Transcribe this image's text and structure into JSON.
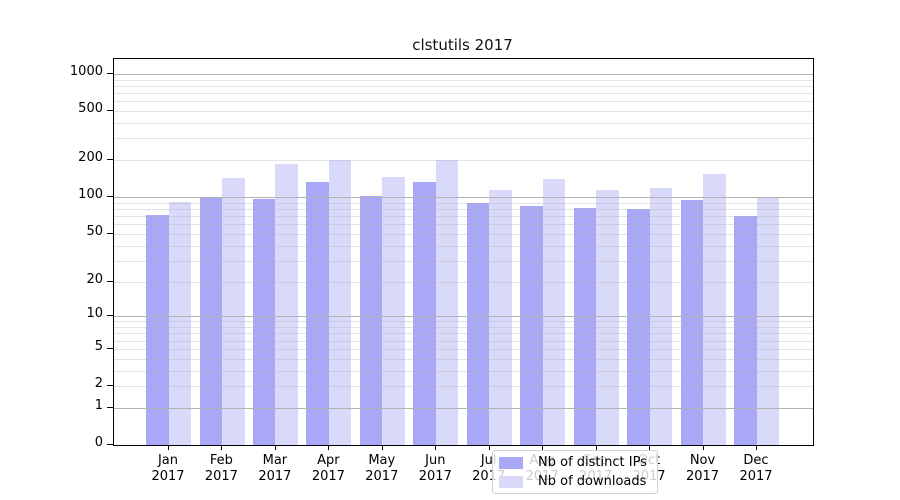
{
  "chart_data": {
    "type": "bar",
    "title": "clstutils 2017",
    "categories": [
      "Jan",
      "Feb",
      "Mar",
      "Apr",
      "May",
      "Jun",
      "Jul",
      "Aug",
      "Sep",
      "Oct",
      "Nov",
      "Dec"
    ],
    "category_second_line": "2017",
    "series": [
      {
        "name": "Nb of distinct IPs",
        "color": "#a8a8f6",
        "values": [
          72,
          100,
          97,
          133,
          102,
          134,
          90,
          84,
          81,
          80,
          95,
          70
        ]
      },
      {
        "name": "Nb of downloads",
        "color": "#d9d9fa",
        "values": [
          91,
          143,
          186,
          200,
          146,
          200,
          114,
          141,
          114,
          119,
          154,
          101
        ]
      }
    ],
    "yscale": "log1p",
    "ylim": [
      0,
      1320
    ],
    "yticks": [
      0,
      1,
      2,
      5,
      10,
      20,
      50,
      100,
      200,
      500,
      1000
    ],
    "major_gridlines": [
      1,
      10,
      100,
      1000
    ],
    "minor_gridlines": [
      2,
      3,
      4,
      5,
      6,
      7,
      8,
      9,
      20,
      30,
      40,
      50,
      60,
      70,
      80,
      90,
      200,
      300,
      400,
      500,
      600,
      700,
      800,
      900
    ],
    "grid": "on",
    "legend_position": "lower center",
    "xlabel": "",
    "ylabel": "",
    "colors": {
      "major_grid": "#b3b3b3",
      "minor_grid": "#e8e8e8",
      "spine": "#000000"
    }
  }
}
